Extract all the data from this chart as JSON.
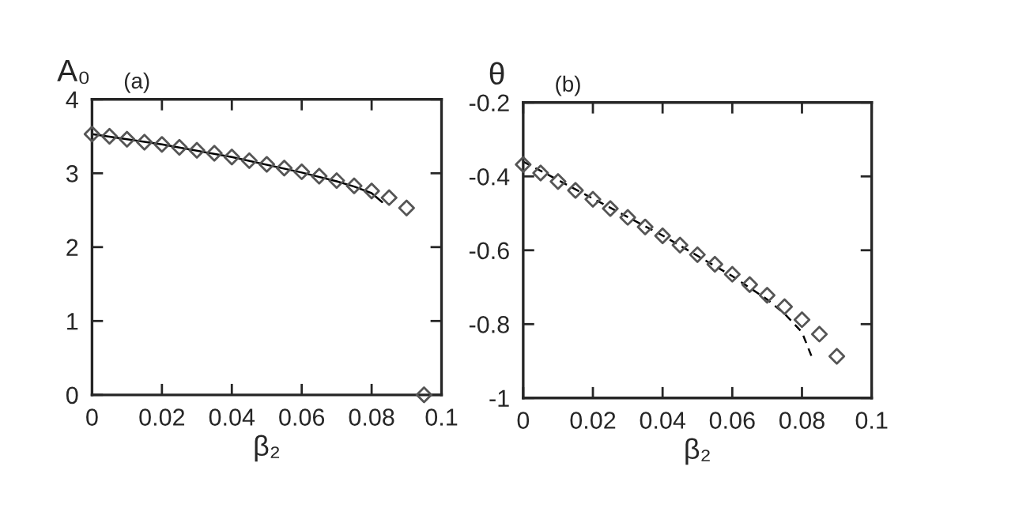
{
  "chart_data": [
    {
      "type": "scatter",
      "title": "(a)",
      "xlabel": "β₂",
      "ylabel": "A₀",
      "xlim": [
        0,
        0.1
      ],
      "ylim": [
        0,
        4
      ],
      "xticks": [
        0,
        0.02,
        0.04,
        0.06,
        0.08,
        0.1
      ],
      "yticks": [
        0,
        1,
        2,
        3,
        4
      ],
      "grid": false,
      "legend": false,
      "series": [
        {
          "marker": "diamond",
          "color": "#555555",
          "x": [
            0,
            0.005,
            0.01,
            0.015,
            0.02,
            0.025,
            0.03,
            0.035,
            0.04,
            0.045,
            0.05,
            0.055,
            0.06,
            0.065,
            0.07,
            0.075,
            0.08,
            0.085,
            0.09,
            0.095
          ],
          "values": [
            3.53,
            3.5,
            3.46,
            3.42,
            3.39,
            3.35,
            3.31,
            3.27,
            3.22,
            3.17,
            3.12,
            3.07,
            3.02,
            2.96,
            2.9,
            2.83,
            2.76,
            2.67,
            2.53,
            0
          ]
        },
        {
          "type": "line",
          "marker": "none",
          "line_style": "solid",
          "color": "#000000",
          "x": [
            0,
            0.02,
            0.04,
            0.06,
            0.07,
            0.075,
            0.08,
            0.083
          ],
          "values": [
            3.53,
            3.39,
            3.22,
            3.01,
            2.89,
            2.82,
            2.73,
            2.61
          ]
        }
      ]
    },
    {
      "type": "scatter",
      "title": "(b)",
      "xlabel": "β₂",
      "ylabel": "θ",
      "xlim": [
        0,
        0.1
      ],
      "ylim": [
        -1,
        -0.2
      ],
      "xticks": [
        0,
        0.02,
        0.04,
        0.06,
        0.08,
        0.1
      ],
      "yticks": [
        -1,
        -0.8,
        -0.6,
        -0.4,
        -0.2
      ],
      "grid": false,
      "legend": false,
      "series": [
        {
          "marker": "diamond",
          "color": "#555555",
          "x": [
            0,
            0.005,
            0.01,
            0.015,
            0.02,
            0.025,
            0.03,
            0.035,
            0.04,
            0.045,
            0.05,
            0.055,
            0.06,
            0.065,
            0.07,
            0.075,
            0.08,
            0.085,
            0.09
          ],
          "values": [
            -0.368,
            -0.391,
            -0.414,
            -0.438,
            -0.462,
            -0.487,
            -0.511,
            -0.537,
            -0.561,
            -0.586,
            -0.612,
            -0.638,
            -0.665,
            -0.693,
            -0.722,
            -0.753,
            -0.788,
            -0.827,
            -0.887
          ]
        },
        {
          "type": "line",
          "marker": "none",
          "line_style": "dashed",
          "color": "#000000",
          "x": [
            0,
            0.02,
            0.04,
            0.06,
            0.07,
            0.075,
            0.08,
            0.083
          ],
          "values": [
            -0.36,
            -0.46,
            -0.56,
            -0.67,
            -0.733,
            -0.772,
            -0.822,
            -0.893
          ]
        }
      ]
    }
  ]
}
